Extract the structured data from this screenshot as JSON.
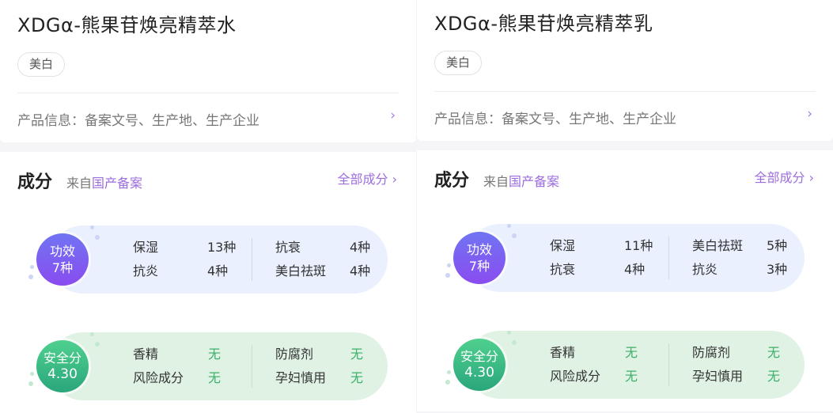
{
  "cards": [
    {
      "title": "XDGα-熊果苷焕亮精萃水",
      "tag": "美白",
      "info": "产品信息：备案文号、生产地、生产企业",
      "chevron": "›",
      "section_title": "成分",
      "source_prefix": "来自",
      "source_link": "国产备案",
      "all_link": "全部成分 ›",
      "efficacy": {
        "label": "功效",
        "count": "7种",
        "items": [
          {
            "name": "保湿",
            "value": "13种"
          },
          {
            "name": "抗衰",
            "value": "4种"
          },
          {
            "name": "抗炎",
            "value": "4种"
          },
          {
            "name": "美白祛斑",
            "value": "4种"
          }
        ]
      },
      "safety": {
        "label": "安全分",
        "score": "4.30",
        "items": [
          {
            "name": "香精",
            "value": "无"
          },
          {
            "name": "防腐剂",
            "value": "无"
          },
          {
            "name": "风险成分",
            "value": "无"
          },
          {
            "name": "孕妇慎用",
            "value": "无"
          }
        ]
      }
    },
    {
      "title": "XDGα-熊果苷焕亮精萃乳",
      "tag": "美白",
      "info": "产品信息：备案文号、生产地、生产企业",
      "chevron": "›",
      "section_title": "成分",
      "source_prefix": "来自",
      "source_link": "国产备案",
      "all_link": "全部成分 ›",
      "efficacy": {
        "label": "功效",
        "count": "7种",
        "items": [
          {
            "name": "保湿",
            "value": "11种"
          },
          {
            "name": "美白祛斑",
            "value": "5种"
          },
          {
            "name": "抗衰",
            "value": "4种"
          },
          {
            "name": "抗炎",
            "value": "3种"
          }
        ]
      },
      "safety": {
        "label": "安全分",
        "score": "4.30",
        "items": [
          {
            "name": "香精",
            "value": "无"
          },
          {
            "name": "防腐剂",
            "value": "无"
          },
          {
            "name": "风险成分",
            "value": "无"
          },
          {
            "name": "孕妇慎用",
            "value": "无"
          }
        ]
      }
    }
  ],
  "colors": {
    "accent": "#9c6ddc",
    "efficacy_bg": "#eaf0fe",
    "safety_bg": "#e0f2e4",
    "safe_value": "#3bb06a"
  }
}
